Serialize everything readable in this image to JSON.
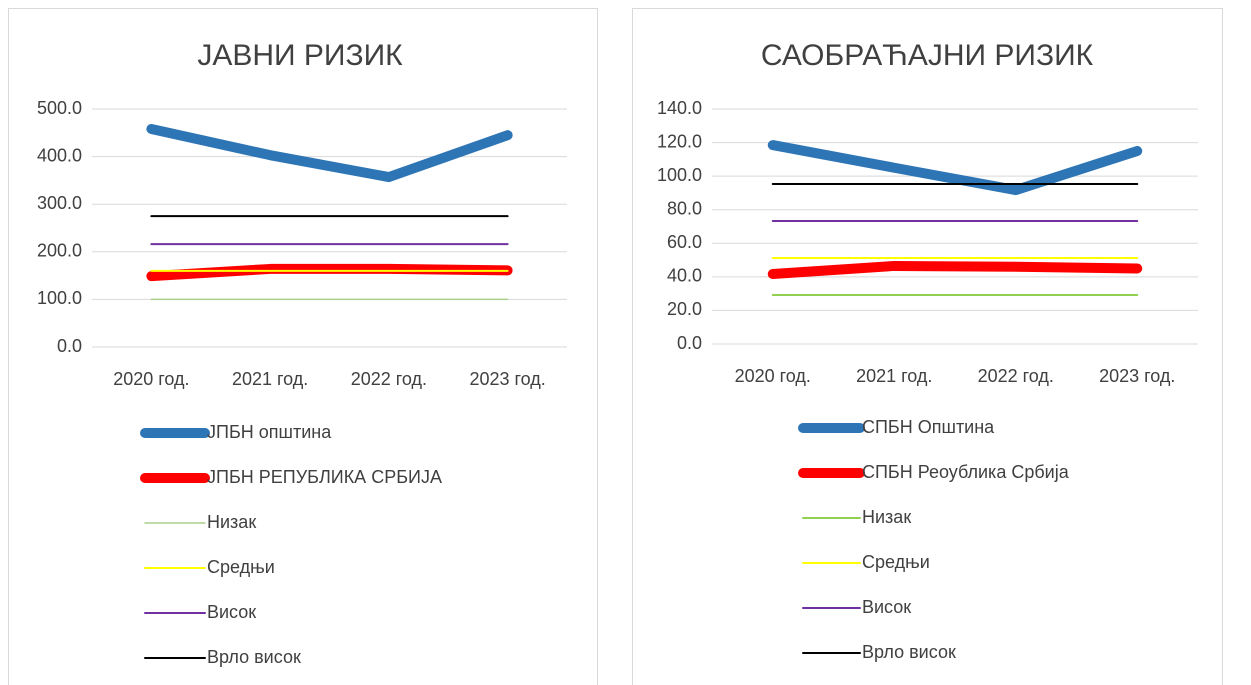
{
  "chart_data": [
    {
      "type": "line",
      "title": "ЈАВНИ РИЗИК",
      "categories": [
        "2020 год.",
        "2021 год.",
        "2022 год.",
        "2023 год."
      ],
      "ylim": [
        0,
        500
      ],
      "yticks": [
        {
          "value": 0,
          "label": "0.0"
        },
        {
          "value": 100,
          "label": "100.0"
        },
        {
          "value": 200,
          "label": "200.0"
        },
        {
          "value": 300,
          "label": "300.0"
        },
        {
          "value": 400,
          "label": "400.0"
        },
        {
          "value": 500,
          "label": "500.0"
        }
      ],
      "grid": true,
      "series": [
        {
          "name": "ЈПБН општина",
          "color": "#2e75b6",
          "line_width": 10,
          "values": [
            458,
            403,
            357,
            445
          ]
        },
        {
          "name": "ЈПБН РЕПУБЛИКА СРБИЈА",
          "color": "#ff0000",
          "line_width": 10,
          "values": [
            149,
            164,
            164,
            161
          ]
        },
        {
          "name": "Низак",
          "color": "#a9d18e",
          "line_width": 1.5,
          "values": [
            100,
            100,
            100,
            100
          ]
        },
        {
          "name": "Средњи",
          "color": "#ffff00",
          "line_width": 2,
          "values": [
            160,
            160,
            160,
            160
          ]
        },
        {
          "name": "Висок",
          "color": "#7030a0",
          "line_width": 2,
          "values": [
            216,
            216,
            216,
            216
          ]
        },
        {
          "name": "Врло висок",
          "color": "#000000",
          "line_width": 2,
          "values": [
            275,
            275,
            275,
            275
          ]
        }
      ]
    },
    {
      "type": "line",
      "title": "САОБРАЋАЈНИ РИЗИК",
      "categories": [
        "2020 год.",
        "2021 год.",
        "2022 год.",
        "2023 год."
      ],
      "ylim": [
        0,
        140
      ],
      "yticks": [
        {
          "value": 0,
          "label": "0.0"
        },
        {
          "value": 20,
          "label": "20.0"
        },
        {
          "value": 40,
          "label": "40.0"
        },
        {
          "value": 60,
          "label": "60.0"
        },
        {
          "value": 80,
          "label": "80.0"
        },
        {
          "value": 100,
          "label": "100.0"
        },
        {
          "value": 120,
          "label": "120.0"
        },
        {
          "value": 140,
          "label": "140.0"
        }
      ],
      "grid": true,
      "series": [
        {
          "name": "СПБН Општина",
          "color": "#2e75b6",
          "line_width": 10,
          "values": [
            118.5,
            105,
            91.7,
            115
          ]
        },
        {
          "name": "СПБН Реоублика Србија",
          "color": "#ff0000",
          "line_width": 10,
          "values": [
            41.7,
            46.5,
            46,
            45
          ]
        },
        {
          "name": "Низак",
          "color": "#92d050",
          "line_width": 2,
          "values": [
            29.2,
            29.2,
            29.2,
            29.2
          ]
        },
        {
          "name": "Средњи",
          "color": "#ffff00",
          "line_width": 2,
          "values": [
            51.2,
            51.2,
            51.2,
            51.2
          ]
        },
        {
          "name": "Висок",
          "color": "#7030a0",
          "line_width": 2,
          "values": [
            73.3,
            73.3,
            73.3,
            73.3
          ]
        },
        {
          "name": "Врло висок",
          "color": "#000000",
          "line_width": 2,
          "values": [
            95.3,
            95.3,
            95.3,
            95.3
          ]
        }
      ]
    }
  ]
}
